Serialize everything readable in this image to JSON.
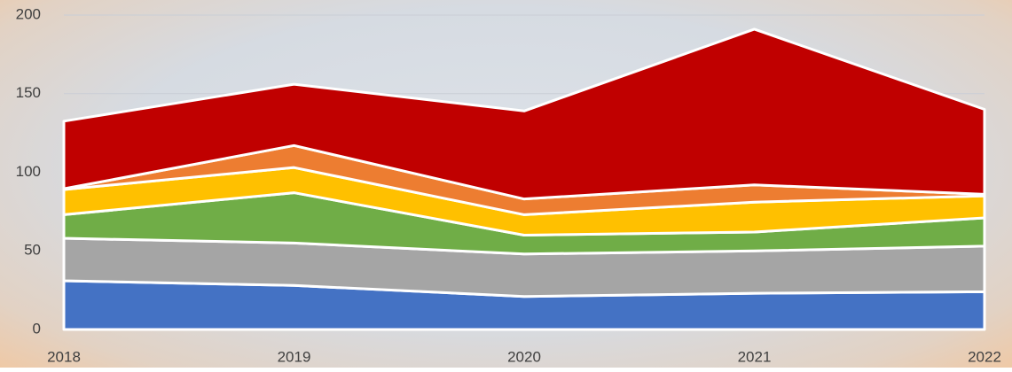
{
  "chart_data": {
    "type": "stacked-area",
    "categories": [
      "2018",
      "2019",
      "2020",
      "2021",
      "2022"
    ],
    "series": [
      {
        "color": "#4472c4",
        "values": [
          31,
          28,
          21,
          23,
          24
        ]
      },
      {
        "color": "#a5a5a5",
        "values": [
          27,
          27,
          27,
          27,
          29
        ]
      },
      {
        "color": "#70ad47",
        "values": [
          15,
          32,
          12,
          12,
          18
        ]
      },
      {
        "color": "#ffc000",
        "values": [
          16,
          16,
          13,
          19,
          14
        ]
      },
      {
        "color": "#ed7d31",
        "values": [
          0.5,
          14,
          10,
          11,
          1
        ]
      },
      {
        "color": "#c00000",
        "values": [
          43,
          39,
          56,
          99,
          54
        ]
      }
    ],
    "ylim": [
      0,
      200
    ],
    "yticks": [
      0,
      50,
      100,
      150,
      200
    ],
    "grid": true
  }
}
